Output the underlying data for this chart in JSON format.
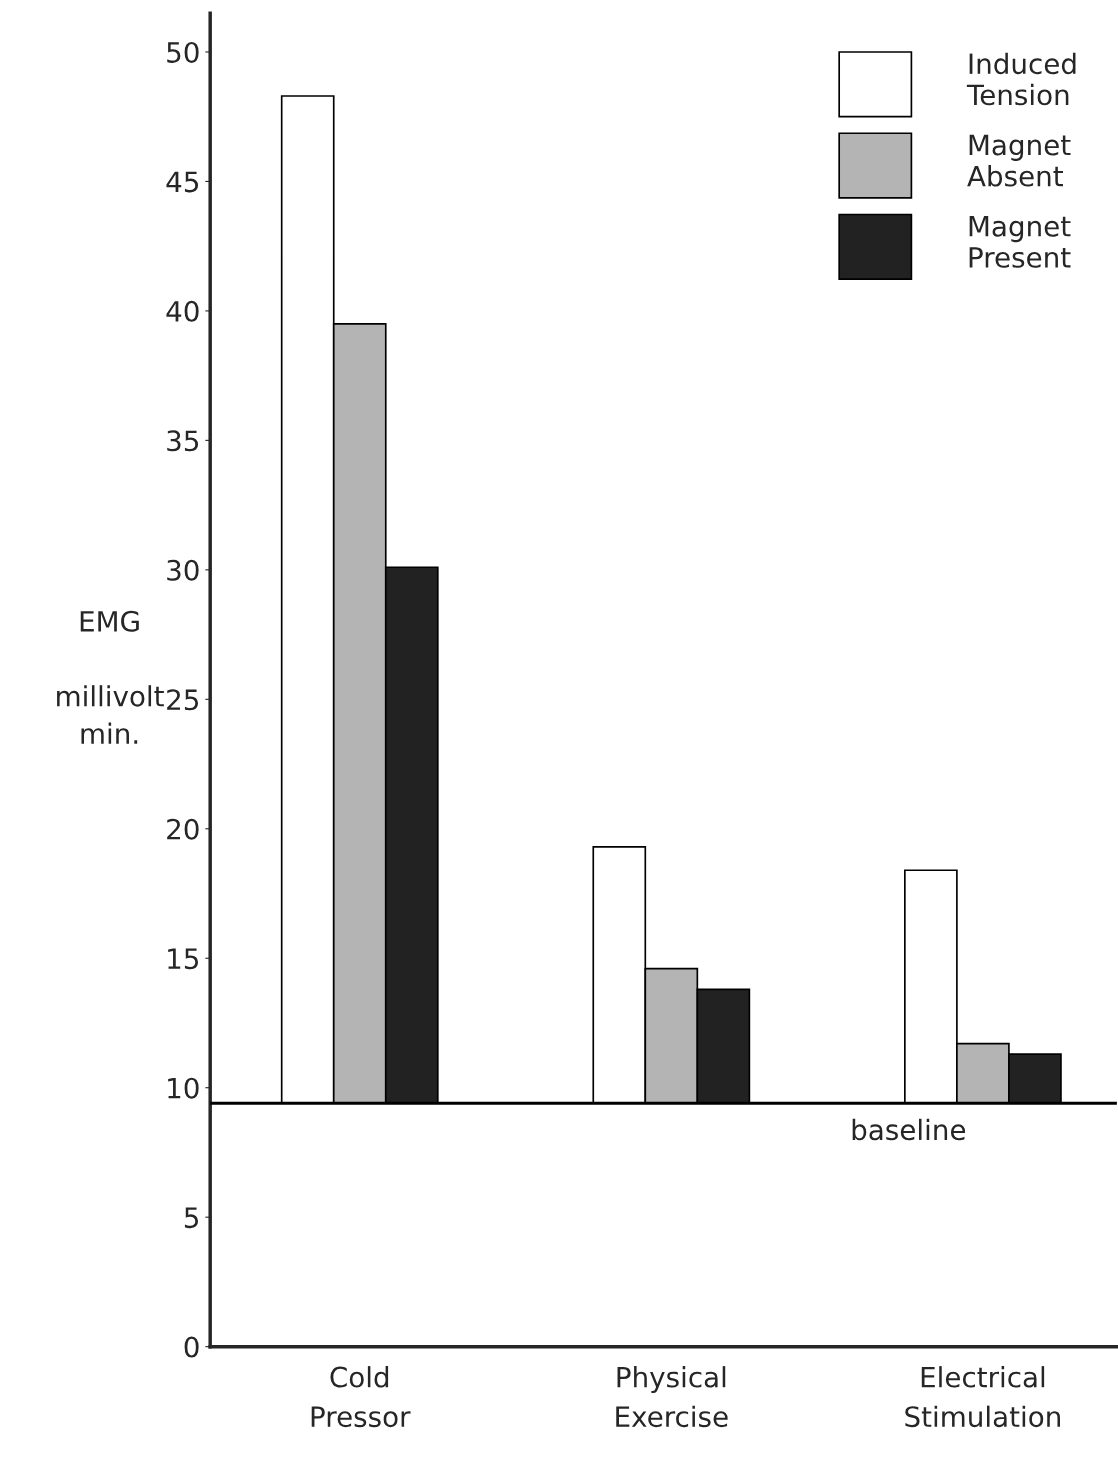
{
  "chart_data": {
    "type": "bar",
    "ylabel": "EMG\n\nmillivolt\nmin.",
    "categories": [
      "Cold\nPressor",
      "Physical\nExercise",
      "Electrical\nStimulation"
    ],
    "series": [
      {
        "name": "Induced\nTension",
        "color": "#ffffff",
        "base": [
          9.4,
          9.4,
          9.4
        ],
        "values": [
          38.9,
          9.9,
          9.0
        ]
      },
      {
        "name": "Magnet\nAbsent",
        "color": "#b4b4b4",
        "base": [
          9.4,
          9.4,
          9.4
        ],
        "values": [
          30.1,
          5.2,
          2.3
        ]
      },
      {
        "name": "Magnet\nPresent",
        "color": "#222222",
        "base": [
          9.4,
          9.4,
          9.4
        ],
        "values": [
          20.7,
          4.4,
          1.9
        ]
      }
    ],
    "ylim": [
      0,
      51.5
    ],
    "yticks": [
      0,
      5,
      10,
      15,
      20,
      25,
      30,
      35,
      40,
      45,
      50
    ],
    "ref_lines": [
      {
        "axis": "y",
        "value": 9.4,
        "label": "baseline"
      }
    ],
    "legend": "top right",
    "grid": false
  }
}
